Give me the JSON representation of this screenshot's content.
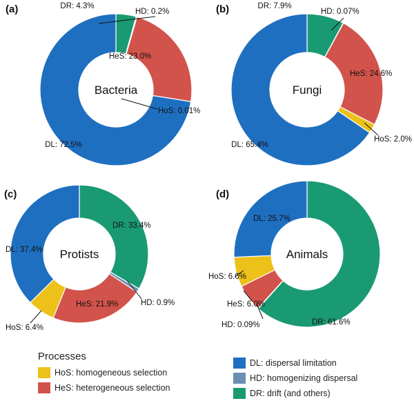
{
  "chart_data": [
    {
      "type": "pie",
      "panel_label": "(a)",
      "center_label": "Bacteria",
      "slices": [
        {
          "key": "DR",
          "value": 4.3,
          "label": "DR: 4.3%"
        },
        {
          "key": "HD",
          "value": 0.2,
          "label": "HD: 0.2%"
        },
        {
          "key": "HeS",
          "value": 23.0,
          "label": "HeS: 23.0%"
        },
        {
          "key": "HoS",
          "value": 0.01,
          "label": "HoS: 0.01%"
        },
        {
          "key": "DL",
          "value": 72.5,
          "label": "DL: 72.5%"
        }
      ]
    },
    {
      "type": "pie",
      "panel_label": "(b)",
      "center_label": "Fungi",
      "slices": [
        {
          "key": "DR",
          "value": 7.9,
          "label": "DR: 7.9%"
        },
        {
          "key": "HD",
          "value": 0.07,
          "label": "HD: 0.07%"
        },
        {
          "key": "HeS",
          "value": 24.6,
          "label": "HeS: 24.6%"
        },
        {
          "key": "HoS",
          "value": 2.0,
          "label": "HoS: 2.0%"
        },
        {
          "key": "DL",
          "value": 65.4,
          "label": "DL: 65.4%"
        }
      ]
    },
    {
      "type": "pie",
      "panel_label": "(c)",
      "center_label": "Protists",
      "slices": [
        {
          "key": "DR",
          "value": 33.4,
          "label": "DR: 33.4%"
        },
        {
          "key": "HD",
          "value": 0.9,
          "label": "HD: 0.9%"
        },
        {
          "key": "HeS",
          "value": 21.9,
          "label": "HeS: 21.9%"
        },
        {
          "key": "HoS",
          "value": 6.4,
          "label": "HoS: 6.4%"
        },
        {
          "key": "DL",
          "value": 37.4,
          "label": "DL: 37.4%"
        }
      ]
    },
    {
      "type": "pie",
      "panel_label": "(d)",
      "center_label": "Animals",
      "slices": [
        {
          "key": "DR",
          "value": 61.6,
          "label": "DR: 61.6%"
        },
        {
          "key": "HD",
          "value": 0.09,
          "label": "HD: 0.09%"
        },
        {
          "key": "HeS",
          "value": 6.0,
          "label": "HeS: 6.0%"
        },
        {
          "key": "HoS",
          "value": 6.6,
          "label": "HoS: 6.6%"
        },
        {
          "key": "DL",
          "value": 25.7,
          "label": "DL: 25.7%"
        }
      ]
    }
  ],
  "colors": {
    "DL": "#1f6fc1",
    "HD": "#6b8fb1",
    "DR": "#1a9a72",
    "HoS": "#ecc11a",
    "HeS": "#d2534b"
  },
  "legend": {
    "title": "Processes",
    "left_items": [
      {
        "key": "HoS",
        "label": "HoS: homogeneous selection"
      },
      {
        "key": "HeS",
        "label": "HeS: heterogeneous selection"
      }
    ],
    "right_items": [
      {
        "key": "DL",
        "label": "DL: dispersal limitation"
      },
      {
        "key": "HD",
        "label": "HD: homogenizing dispersal"
      },
      {
        "key": "DR",
        "label": "DR: drift (and others)"
      }
    ]
  }
}
